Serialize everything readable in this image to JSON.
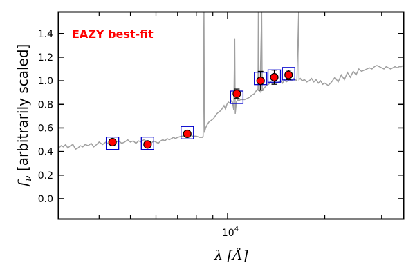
{
  "chart_data": {
    "type": "scatter",
    "title": "",
    "xlabel": "λ [Å]",
    "ylabel": "f_ν [arbitrarily scaled]",
    "xscale": "log",
    "xlim": [
      3000,
      35000
    ],
    "ylim": [
      -0.17,
      1.58
    ],
    "x_ticks": [
      {
        "value": 10000,
        "label": "10^4"
      }
    ],
    "y_ticks": [
      {
        "value": 0.0,
        "label": "0.0"
      },
      {
        "value": 0.2,
        "label": "0.2"
      },
      {
        "value": 0.4,
        "label": "0.4"
      },
      {
        "value": 0.6,
        "label": "0.6"
      },
      {
        "value": 0.8,
        "label": "0.8"
      },
      {
        "value": 1.0,
        "label": "1.0"
      },
      {
        "value": 1.2,
        "label": "1.2"
      },
      {
        "value": 1.4,
        "label": "1.4"
      }
    ],
    "grid": false,
    "annotation": {
      "text": "EAZY best-fit",
      "color": "#ff0000",
      "placement": "top-left"
    },
    "colors": {
      "model": "#a0a0a0",
      "observed_fill": "#ff0000",
      "observed_edge": "#000000",
      "model_box": "#0000cc"
    },
    "series": [
      {
        "type": "line",
        "points": [
          [
            3000,
            0.43
          ],
          [
            3050,
            0.45
          ],
          [
            3100,
            0.44
          ],
          [
            3150,
            0.46
          ],
          [
            3200,
            0.43
          ],
          [
            3260,
            0.45
          ],
          [
            3320,
            0.46
          ],
          [
            3380,
            0.42
          ],
          [
            3440,
            0.43
          ],
          [
            3500,
            0.45
          ],
          [
            3560,
            0.44
          ],
          [
            3620,
            0.46
          ],
          [
            3700,
            0.45
          ],
          [
            3780,
            0.47
          ],
          [
            3850,
            0.44
          ],
          [
            3930,
            0.46
          ],
          [
            4000,
            0.48
          ],
          [
            4100,
            0.46
          ],
          [
            4200,
            0.48
          ],
          [
            4300,
            0.46
          ],
          [
            4400,
            0.49
          ],
          [
            4500,
            0.48
          ],
          [
            4600,
            0.49
          ],
          [
            4700,
            0.47
          ],
          [
            4800,
            0.48
          ],
          [
            4900,
            0.5
          ],
          [
            5000,
            0.48
          ],
          [
            5100,
            0.49
          ],
          [
            5200,
            0.47
          ],
          [
            5300,
            0.49
          ],
          [
            5400,
            0.48
          ],
          [
            5500,
            0.5
          ],
          [
            5600,
            0.49
          ],
          [
            5700,
            0.48
          ],
          [
            5800,
            0.47
          ],
          [
            5900,
            0.49
          ],
          [
            6000,
            0.48
          ],
          [
            6100,
            0.47
          ],
          [
            6200,
            0.49
          ],
          [
            6300,
            0.5
          ],
          [
            6400,
            0.49
          ],
          [
            6500,
            0.51
          ],
          [
            6600,
            0.5
          ],
          [
            6700,
            0.51
          ],
          [
            6800,
            0.52
          ],
          [
            6900,
            0.51
          ],
          [
            7000,
            0.52
          ],
          [
            7200,
            0.53
          ],
          [
            7400,
            0.53
          ],
          [
            7600,
            0.54
          ],
          [
            7800,
            0.53
          ],
          [
            8000,
            0.53
          ],
          [
            8200,
            0.52
          ],
          [
            8350,
            0.52
          ],
          [
            8400,
            0.53
          ],
          [
            8450,
            1.58
          ],
          [
            8480,
            0.56
          ],
          [
            8550,
            0.6
          ],
          [
            8650,
            0.63
          ],
          [
            8750,
            0.65
          ],
          [
            8850,
            0.66
          ],
          [
            8950,
            0.67
          ],
          [
            9050,
            0.68
          ],
          [
            9150,
            0.7
          ],
          [
            9250,
            0.72
          ],
          [
            9350,
            0.73
          ],
          [
            9450,
            0.74
          ],
          [
            9550,
            0.75
          ],
          [
            9650,
            0.77
          ],
          [
            9750,
            0.79
          ],
          [
            9850,
            0.76
          ],
          [
            9950,
            0.8
          ],
          [
            10050,
            0.82
          ],
          [
            10150,
            0.81
          ],
          [
            10250,
            0.83
          ],
          [
            10350,
            0.82
          ],
          [
            10450,
            0.75
          ],
          [
            10520,
            1.36
          ],
          [
            10560,
            0.72
          ],
          [
            10650,
            0.82
          ],
          [
            10750,
            0.84
          ],
          [
            10850,
            0.83
          ],
          [
            10950,
            0.84
          ],
          [
            11100,
            0.84
          ],
          [
            11300,
            0.84
          ],
          [
            11500,
            0.85
          ],
          [
            11700,
            0.86
          ],
          [
            11900,
            0.88
          ],
          [
            12100,
            0.89
          ],
          [
            12300,
            0.92
          ],
          [
            12420,
            0.93
          ],
          [
            12450,
            1.58
          ],
          [
            12480,
            0.93
          ],
          [
            12600,
            0.91
          ],
          [
            12750,
            1.58
          ],
          [
            12800,
            0.92
          ],
          [
            13000,
            0.94
          ],
          [
            13200,
            0.96
          ],
          [
            13400,
            0.97
          ],
          [
            13600,
            0.99
          ],
          [
            13800,
            0.97
          ],
          [
            14000,
            1.0
          ],
          [
            14200,
            0.98
          ],
          [
            14400,
            0.99
          ],
          [
            14600,
            1.0
          ],
          [
            14800,
            0.98
          ],
          [
            15000,
            1.01
          ],
          [
            15200,
            0.99
          ],
          [
            15400,
            1.0
          ],
          [
            15600,
            1.01
          ],
          [
            15800,
            1.0
          ],
          [
            16000,
            1.02
          ],
          [
            16200,
            1.01
          ],
          [
            16400,
            1.0
          ],
          [
            16600,
            1.58
          ],
          [
            16650,
            1.01
          ],
          [
            16800,
            1.02
          ],
          [
            17000,
            1.0
          ],
          [
            17300,
            1.01
          ],
          [
            17600,
            0.99
          ],
          [
            17900,
            1.0
          ],
          [
            18200,
            1.02
          ],
          [
            18500,
            0.99
          ],
          [
            18800,
            1.01
          ],
          [
            19100,
            0.98
          ],
          [
            19400,
            1.0
          ],
          [
            19700,
            0.97
          ],
          [
            20000,
            0.98
          ],
          [
            20500,
            0.96
          ],
          [
            21000,
            0.99
          ],
          [
            21500,
            1.03
          ],
          [
            22000,
            0.99
          ],
          [
            22500,
            1.05
          ],
          [
            23000,
            1.01
          ],
          [
            23500,
            1.07
          ],
          [
            24000,
            1.03
          ],
          [
            24500,
            1.08
          ],
          [
            25000,
            1.05
          ],
          [
            25500,
            1.1
          ],
          [
            26000,
            1.08
          ],
          [
            26500,
            1.09
          ],
          [
            27000,
            1.1
          ],
          [
            27500,
            1.11
          ],
          [
            28000,
            1.1
          ],
          [
            28500,
            1.12
          ],
          [
            29000,
            1.13
          ],
          [
            29500,
            1.12
          ],
          [
            30000,
            1.11
          ],
          [
            30500,
            1.1
          ],
          [
            31000,
            1.12
          ],
          [
            31500,
            1.11
          ],
          [
            32000,
            1.1
          ],
          [
            32500,
            1.11
          ],
          [
            33000,
            1.12
          ],
          [
            33500,
            1.11
          ],
          [
            34000,
            1.12
          ],
          [
            34500,
            1.12
          ],
          [
            35000,
            1.13
          ]
        ]
      },
      {
        "type": "scatter",
        "points": [
          {
            "x": 4400,
            "y": 0.48,
            "err": 0.0
          },
          {
            "x": 5650,
            "y": 0.46,
            "err": 0.0
          },
          {
            "x": 7500,
            "y": 0.55,
            "err": 0.0
          },
          {
            "x": 10680,
            "y": 0.89,
            "err": 0.04
          },
          {
            "x": 12650,
            "y": 1.0,
            "err": 0.08
          },
          {
            "x": 13950,
            "y": 1.03,
            "err": 0.06
          },
          {
            "x": 15450,
            "y": 1.05,
            "err": 0.04
          }
        ]
      },
      {
        "type": "scatter",
        "marker": "square",
        "points": [
          {
            "x": 4400,
            "y": 0.47
          },
          {
            "x": 5650,
            "y": 0.47
          },
          {
            "x": 7500,
            "y": 0.56
          },
          {
            "x": 10680,
            "y": 0.86
          },
          {
            "x": 12650,
            "y": 1.02
          },
          {
            "x": 13950,
            "y": 1.04
          },
          {
            "x": 15450,
            "y": 1.06
          }
        ]
      }
    ]
  }
}
